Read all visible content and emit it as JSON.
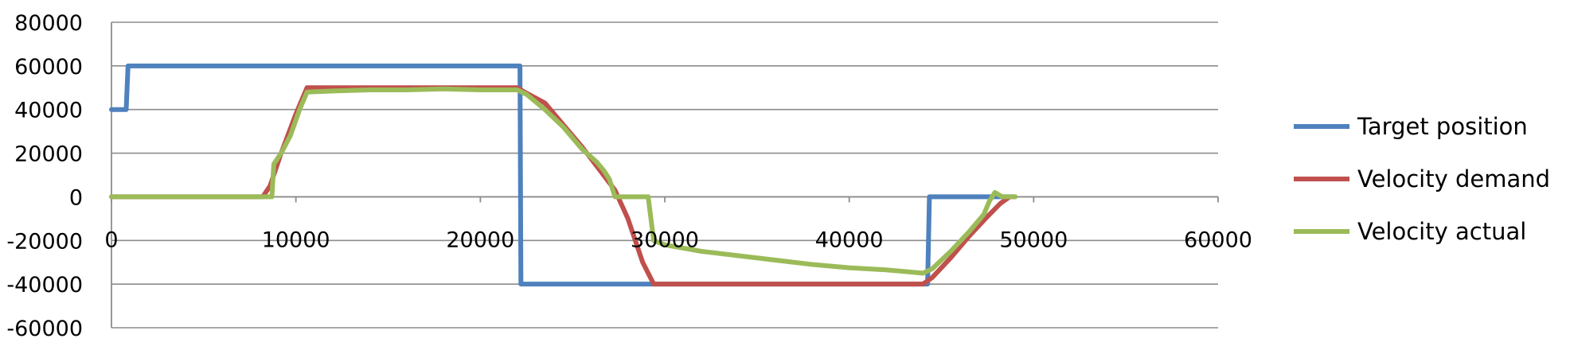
{
  "chart_data": {
    "type": "line",
    "title": "",
    "xlabel": "",
    "ylabel": "",
    "xlim": [
      0,
      60000
    ],
    "ylim": [
      -60000,
      80000
    ],
    "x_ticks": [
      0,
      10000,
      20000,
      30000,
      40000,
      50000,
      60000
    ],
    "y_ticks": [
      80000,
      60000,
      40000,
      20000,
      0,
      -20000,
      -40000,
      -60000
    ],
    "x_tick_labels": [
      "0",
      "10000",
      "20000",
      "30000",
      "40000",
      "50000",
      "60000"
    ],
    "y_tick_labels": [
      "80000",
      "60000",
      "40000",
      "20000",
      "0",
      "-20000",
      "-40000",
      "-60000"
    ],
    "grid": "horizontal",
    "legend_position": "right",
    "series": [
      {
        "name": "Target position",
        "color": "#4f81bd",
        "points": [
          [
            0,
            40000
          ],
          [
            800,
            40000
          ],
          [
            900,
            60000
          ],
          [
            22150,
            60000
          ],
          [
            22200,
            -40000
          ],
          [
            44250,
            -40000
          ],
          [
            44350,
            0
          ],
          [
            49000,
            0
          ]
        ]
      },
      {
        "name": "Velocity demand",
        "color": "#c0504d",
        "points": [
          [
            0,
            0
          ],
          [
            8200,
            0
          ],
          [
            8600,
            5000
          ],
          [
            9200,
            20000
          ],
          [
            10000,
            38000
          ],
          [
            10600,
            50000
          ],
          [
            12000,
            50000
          ],
          [
            14000,
            50000
          ],
          [
            16000,
            50000
          ],
          [
            18000,
            50000
          ],
          [
            20000,
            50000
          ],
          [
            22000,
            50000
          ],
          [
            22400,
            48000
          ],
          [
            23500,
            43000
          ],
          [
            24500,
            33000
          ],
          [
            25500,
            23000
          ],
          [
            26500,
            12000
          ],
          [
            27300,
            3000
          ],
          [
            28000,
            -10000
          ],
          [
            28800,
            -30000
          ],
          [
            29400,
            -40000
          ],
          [
            44000,
            -40000
          ],
          [
            44500,
            -37000
          ],
          [
            45500,
            -28000
          ],
          [
            46500,
            -18000
          ],
          [
            47500,
            -9000
          ],
          [
            48200,
            -3000
          ],
          [
            48700,
            0
          ]
        ]
      },
      {
        "name": "Velocity actual",
        "color": "#9bbb59",
        "points": [
          [
            0,
            0
          ],
          [
            8500,
            0
          ],
          [
            8700,
            0
          ],
          [
            8800,
            15000
          ],
          [
            9200,
            20000
          ],
          [
            9700,
            28000
          ],
          [
            10200,
            40000
          ],
          [
            10600,
            48000
          ],
          [
            12000,
            48500
          ],
          [
            14000,
            49000
          ],
          [
            16000,
            49000
          ],
          [
            18000,
            49500
          ],
          [
            20000,
            49000
          ],
          [
            22000,
            49000
          ],
          [
            22500,
            47000
          ],
          [
            23500,
            40000
          ],
          [
            24500,
            32000
          ],
          [
            25500,
            22000
          ],
          [
            26300,
            16000
          ],
          [
            26700,
            12000
          ],
          [
            27000,
            8000
          ],
          [
            27300,
            0
          ],
          [
            29100,
            0
          ],
          [
            29400,
            -20000
          ],
          [
            30000,
            -22000
          ],
          [
            32000,
            -25000
          ],
          [
            34000,
            -27000
          ],
          [
            36000,
            -29000
          ],
          [
            38000,
            -31000
          ],
          [
            40000,
            -32500
          ],
          [
            42000,
            -33500
          ],
          [
            44000,
            -35000
          ],
          [
            44500,
            -33000
          ],
          [
            45500,
            -25000
          ],
          [
            46500,
            -16000
          ],
          [
            47300,
            -8000
          ],
          [
            47600,
            -2000
          ],
          [
            47900,
            2000
          ],
          [
            48300,
            0
          ],
          [
            49000,
            0
          ]
        ]
      }
    ]
  }
}
